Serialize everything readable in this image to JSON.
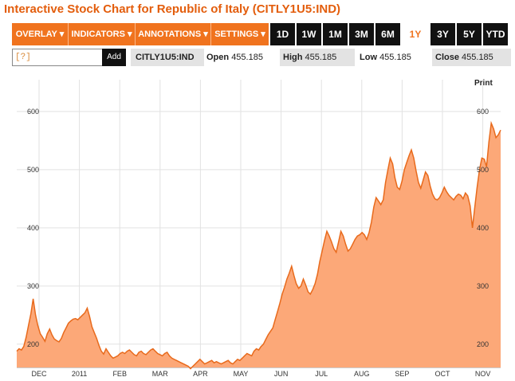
{
  "title": "Interactive Stock Chart for Republic of Italy (CITLY1U5:IND)",
  "toolbar": {
    "menus": [
      {
        "label": "OVERLAY ▾"
      },
      {
        "label": "INDICATORS ▾"
      },
      {
        "label": "ANNOTATIONS ▾"
      },
      {
        "label": "SETTINGS ▾"
      }
    ],
    "ranges": [
      "1D",
      "1W",
      "1M",
      "3M",
      "6M",
      "1Y",
      "3Y",
      "5Y",
      "YTD"
    ],
    "active_range": "1Y"
  },
  "symbol_input": {
    "value": "[?]"
  },
  "add_label": "Add",
  "ticker": "CITLY1U5:IND",
  "quote": {
    "open_label": "Open",
    "open": "455.185",
    "high_label": "High",
    "high": "455.185",
    "low_label": "Low",
    "low": "455.185",
    "close_label": "Close",
    "close": "455.185"
  },
  "print_label": "Print",
  "colors": {
    "accent": "#f0731e",
    "area_fill": "#fca878",
    "line": "#e86a1c",
    "toolbar_dark": "#111111"
  },
  "chart_data": {
    "type": "area",
    "xlabel": "",
    "ylabel": "",
    "ylim": [
      160,
      630
    ],
    "yticks": [
      200,
      300,
      400,
      500,
      600
    ],
    "xticks": [
      "DEC",
      "2011",
      "FEB",
      "MAR",
      "APR",
      "MAY",
      "JUN",
      "JUL",
      "AUG",
      "SEP",
      "OCT",
      "NOV"
    ],
    "grid": true,
    "series": [
      {
        "values": [
          188,
          192,
          190,
          196,
          212,
          232,
          252,
          278,
          250,
          232,
          218,
          212,
          205,
          218,
          226,
          216,
          209,
          206,
          204,
          210,
          220,
          228,
          236,
          240,
          243,
          244,
          242,
          246,
          250,
          254,
          262,
          248,
          230,
          220,
          210,
          198,
          188,
          183,
          192,
          186,
          180,
          176,
          178,
          180,
          184,
          186,
          184,
          188,
          190,
          186,
          182,
          180,
          186,
          188,
          184,
          182,
          186,
          190,
          192,
          188,
          184,
          182,
          180,
          184,
          186,
          180,
          176,
          174,
          172,
          170,
          168,
          166,
          164,
          162,
          158,
          162,
          166,
          170,
          174,
          170,
          166,
          168,
          170,
          172,
          168,
          170,
          168,
          166,
          168,
          170,
          172,
          168,
          166,
          170,
          174,
          172,
          176,
          180,
          184,
          182,
          180,
          188,
          192,
          190,
          196,
          200,
          208,
          216,
          222,
          228,
          242,
          256,
          270,
          286,
          298,
          312,
          322,
          334,
          318,
          304,
          296,
          300,
          312,
          302,
          290,
          286,
          294,
          304,
          320,
          342,
          360,
          378,
          394,
          386,
          376,
          364,
          358,
          376,
          394,
          386,
          372,
          360,
          364,
          372,
          380,
          386,
          388,
          392,
          388,
          380,
          392,
          410,
          436,
          452,
          446,
          440,
          448,
          478,
          500,
          520,
          510,
          486,
          470,
          466,
          480,
          500,
          512,
          524,
          534,
          520,
          498,
          478,
          468,
          482,
          496,
          490,
          472,
          458,
          450,
          448,
          452,
          460,
          470,
          462,
          456,
          452,
          448,
          454,
          458,
          456,
          450,
          460,
          455,
          438,
          400,
          436,
          470,
          500,
          520,
          518,
          505,
          548,
          580,
          570,
          555,
          560,
          568
        ]
      }
    ]
  }
}
